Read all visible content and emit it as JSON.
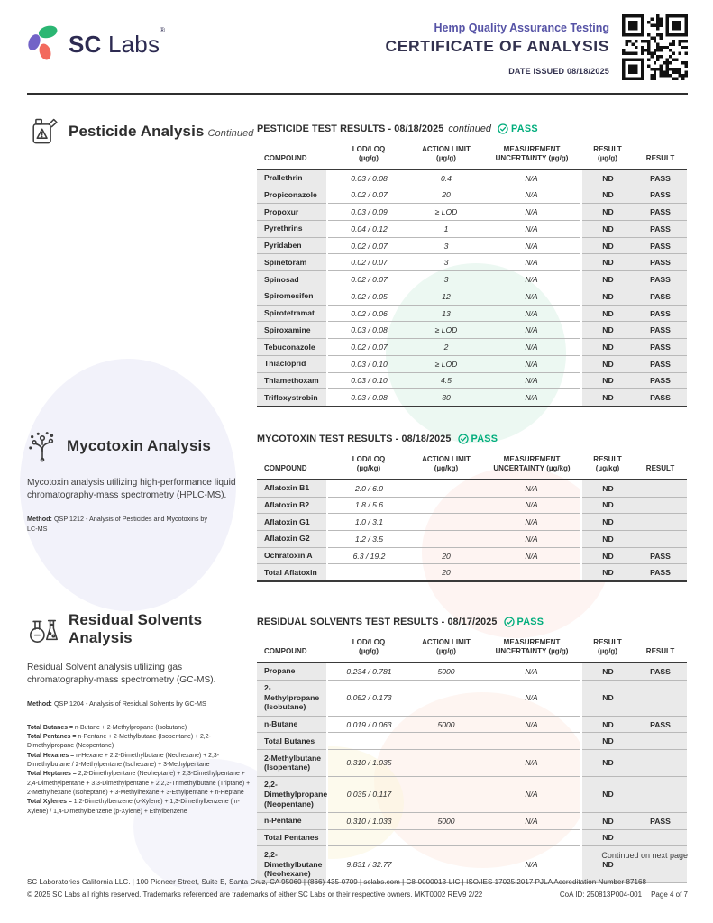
{
  "header": {
    "brand_bold": "SC",
    "brand_regular": "Labs",
    "registered": "®",
    "program": "Hemp Quality Assurance Testing",
    "title": "CERTIFICATE OF ANALYSIS",
    "date_issued": "DATE ISSUED 08/18/2025"
  },
  "pesticide": {
    "section_title": "Pesticide Analysis",
    "section_title_suffix": "Continued",
    "results_title": "PESTICIDE TEST RESULTS - 08/18/2025",
    "results_note": "continued",
    "pass_label": "PASS",
    "table": {
      "headers": [
        [
          "COMPOUND",
          ""
        ],
        [
          "LOD/LOQ",
          "(µg/g)"
        ],
        [
          "ACTION LIMIT",
          "(µg/g)"
        ],
        [
          "MEASUREMENT",
          "UNCERTAINTY (µg/g)"
        ],
        [
          "RESULT",
          "(µg/g)"
        ],
        [
          "RESULT",
          ""
        ]
      ],
      "rows": [
        [
          "Prallethrin",
          "0.03 / 0.08",
          "0.4",
          "N/A",
          "ND",
          "PASS"
        ],
        [
          "Propiconazole",
          "0.02 / 0.07",
          "20",
          "N/A",
          "ND",
          "PASS"
        ],
        [
          "Propoxur",
          "0.03 / 0.09",
          "≥ LOD",
          "N/A",
          "ND",
          "PASS"
        ],
        [
          "Pyrethrins",
          "0.04 / 0.12",
          "1",
          "N/A",
          "ND",
          "PASS"
        ],
        [
          "Pyridaben",
          "0.02 / 0.07",
          "3",
          "N/A",
          "ND",
          "PASS"
        ],
        [
          "Spinetoram",
          "0.02 / 0.07",
          "3",
          "N/A",
          "ND",
          "PASS"
        ],
        [
          "Spinosad",
          "0.02 / 0.07",
          "3",
          "N/A",
          "ND",
          "PASS"
        ],
        [
          "Spiromesifen",
          "0.02 / 0.05",
          "12",
          "N/A",
          "ND",
          "PASS"
        ],
        [
          "Spirotetramat",
          "0.02 / 0.06",
          "13",
          "N/A",
          "ND",
          "PASS"
        ],
        [
          "Spiroxamine",
          "0.03 / 0.08",
          "≥ LOD",
          "N/A",
          "ND",
          "PASS"
        ],
        [
          "Tebuconazole",
          "0.02 / 0.07",
          "2",
          "N/A",
          "ND",
          "PASS"
        ],
        [
          "Thiacloprid",
          "0.03 / 0.10",
          "≥ LOD",
          "N/A",
          "ND",
          "PASS"
        ],
        [
          "Thiamethoxam",
          "0.03 / 0.10",
          "4.5",
          "N/A",
          "ND",
          "PASS"
        ],
        [
          "Trifloxystrobin",
          "0.03 / 0.08",
          "30",
          "N/A",
          "ND",
          "PASS"
        ]
      ]
    }
  },
  "mycotoxin": {
    "section_title": "Mycotoxin Analysis",
    "description": "Mycotoxin analysis utilizing high-performance liquid chromatography-mass spectrometry (HPLC-MS).",
    "method_label": "Method:",
    "method": "QSP 1212 - Analysis of Pesticides and Mycotoxins by LC-MS",
    "results_title": "MYCOTOXIN TEST RESULTS - 08/18/2025",
    "pass_label": "PASS",
    "table": {
      "headers": [
        [
          "COMPOUND",
          ""
        ],
        [
          "LOD/LOQ",
          "(µg/kg)"
        ],
        [
          "ACTION LIMIT",
          "(µg/kg)"
        ],
        [
          "MEASUREMENT",
          "UNCERTAINTY (µg/kg)"
        ],
        [
          "RESULT",
          "(µg/kg)"
        ],
        [
          "RESULT",
          ""
        ]
      ],
      "rows": [
        [
          "Aflatoxin B1",
          "2.0 / 6.0",
          "",
          "N/A",
          "ND",
          ""
        ],
        [
          "Aflatoxin B2",
          "1.8 / 5.6",
          "",
          "N/A",
          "ND",
          ""
        ],
        [
          "Aflatoxin G1",
          "1.0 / 3.1",
          "",
          "N/A",
          "ND",
          ""
        ],
        [
          "Aflatoxin G2",
          "1.2 / 3.5",
          "",
          "N/A",
          "ND",
          ""
        ],
        [
          "Ochratoxin A",
          "6.3 / 19.2",
          "20",
          "N/A",
          "ND",
          "PASS"
        ],
        [
          "Total Aflatoxin",
          "",
          "20",
          "",
          "ND",
          "PASS"
        ]
      ]
    }
  },
  "solvents": {
    "section_title": "Residual Solvents Analysis",
    "description": "Residual Solvent analysis utilizing gas chromatography-mass spectrometry (GC-MS).",
    "method_label": "Method:",
    "method": "QSP 1204 - Analysis of Residual Solvents by GC-MS",
    "results_title": "RESIDUAL SOLVENTS TEST RESULTS - 08/17/2025",
    "pass_label": "PASS",
    "notes": [
      {
        "lead": "Total Butanes = ",
        "text": "n-Butane + 2-Methylpropane (Isobutane)"
      },
      {
        "lead": "Total Pentanes = ",
        "text": "n-Pentane + 2-Methylbutane (Isopentane) + 2,2-Dimethylpropane (Neopentane)"
      },
      {
        "lead": "Total Hexanes = ",
        "text": "n-Hexane + 2,2-Dimethylbutane (Neohexane) + 2,3-Dimethylbutane / 2-Methylpentane (Isohexane) + 3-Methylpentane"
      },
      {
        "lead": "Total Heptanes = ",
        "text": "2,2-Dimethylpentane (Neoheptane) + 2,3-Dimethylpentane + 2,4-Dimethylpentane + 3,3-Dimethylpentane + 2,2,3-Trimethylbutane (Triptane) + 2-Methylhexane (Isoheptane) + 3-Methylhexane + 3-Ethylpentane + n-Heptane"
      },
      {
        "lead": "Total Xylenes = ",
        "text": "1,2-Dimethylbenzene (o-Xylene) + 1,3-Dimethylbenzene (m-Xylene) / 1,4-Dimethylbenzene (p-Xylene) + Ethylbenzene"
      }
    ],
    "table": {
      "headers": [
        [
          "COMPOUND",
          ""
        ],
        [
          "LOD/LOQ",
          "(µg/g)"
        ],
        [
          "ACTION LIMIT",
          "(µg/g)"
        ],
        [
          "MEASUREMENT",
          "UNCERTAINTY (µg/g)"
        ],
        [
          "RESULT",
          "(µg/g)"
        ],
        [
          "RESULT",
          ""
        ]
      ],
      "rows": [
        [
          "Propane",
          "0.234 / 0.781",
          "5000",
          "N/A",
          "ND",
          "PASS"
        ],
        [
          "2-Methylpropane\n(Isobutane)",
          "0.052 / 0.173",
          "",
          "N/A",
          "ND",
          ""
        ],
        [
          "n-Butane",
          "0.019 / 0.063",
          "5000",
          "N/A",
          "ND",
          "PASS"
        ],
        [
          "Total Butanes",
          "",
          "",
          "",
          "ND",
          ""
        ],
        [
          "2-Methylbutane\n(Isopentane)",
          "0.310 / 1.035",
          "",
          "N/A",
          "ND",
          ""
        ],
        [
          "2,2-Dimethylpropane\n(Neopentane)",
          "0.035 / 0.117",
          "",
          "N/A",
          "ND",
          ""
        ],
        [
          "n-Pentane",
          "0.310 / 1.033",
          "5000",
          "N/A",
          "ND",
          "PASS"
        ],
        [
          "Total Pentanes",
          "",
          "",
          "",
          "ND",
          ""
        ],
        [
          "2,2-Dimethylbutane\n(Neohexane)",
          "9.831 / 32.77",
          "",
          "N/A",
          "ND",
          ""
        ]
      ]
    }
  },
  "footer": {
    "continued": "Continued on next page",
    "line1": "SC Laboratories California LLC. | 100 Pioneer Street, Suite E, Santa Cruz, CA 95060 | (866) 435-0709 | sclabs.com | C8-0000013-LIC | ISO/IES 17025:2017 PJLA Accreditation Number 87168",
    "line2": "© 2025 SC Labs all rights reserved. Trademarks referenced are trademarks of either SC Labs or their respective owners. MKT0002 REV9 2/22",
    "coa_id": "CoA ID: 250813P004-001",
    "page": "Page 4 of 7"
  },
  "colors": {
    "pass_green": "#00AD7C",
    "brand_purple": "#5653A6",
    "navy_text": "#33324F"
  }
}
